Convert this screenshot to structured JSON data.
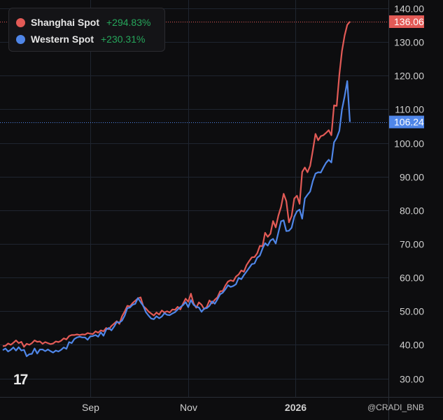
{
  "legend": {
    "items": [
      {
        "name": "Shanghai Spot",
        "change": "+294.83%",
        "color": "#e25a56"
      },
      {
        "name": "Western Spot",
        "change": "+230.31%",
        "color": "#4f86e8"
      }
    ]
  },
  "logo_text": "17",
  "watermark": "@CRADI_BNB",
  "colors": {
    "background": "#0d0d0f",
    "grid": "#1f2530",
    "axis_text": "#cfcfcf",
    "shanghai": "#e25a56",
    "western": "#4f86e8",
    "change_positive": "#26a65b"
  },
  "chart_data": {
    "type": "line",
    "x_axis": {
      "tick_labels": [
        "Sep",
        "Nov",
        "2026"
      ]
    },
    "y_axis": {
      "side": "right",
      "ylim": [
        24.5,
        142.5
      ],
      "ticks": [
        30,
        40,
        50,
        60,
        70,
        80,
        90,
        100,
        110,
        120,
        130,
        140
      ],
      "tick_labels": [
        "30.00",
        "40.00",
        "50.00",
        "60.00",
        "70.00",
        "80.00",
        "90.00",
        "100.00",
        "110.00",
        "120.00",
        "130.00",
        "140.00"
      ]
    },
    "grid": true,
    "legend_position": "top-left",
    "last_value_labels": [
      {
        "series": "Shanghai Spot",
        "value": 136.06,
        "label": "136.06"
      },
      {
        "series": "Western Spot",
        "value": 106.24,
        "label": "106.24"
      }
    ],
    "series": [
      {
        "name": "Shanghai Spot",
        "color": "#e25a56",
        "values": [
          39.6,
          39.7,
          40.4,
          40.0,
          40.6,
          41.3,
          40.5,
          40.9,
          39.4,
          40.3,
          40.0,
          40.5,
          41.3,
          40.9,
          41.0,
          40.3,
          40.8,
          40.5,
          40.2,
          40.4,
          41.0,
          40.8,
          41.2,
          41.9,
          41.6,
          42.6,
          42.9,
          42.9,
          43.1,
          42.9,
          43.1,
          43.0,
          43.5,
          43.3,
          43.2,
          44.0,
          43.6,
          44.3,
          44.0,
          45.0,
          44.6,
          45.6,
          46.3,
          47.0,
          46.2,
          48.5,
          49.9,
          51.6,
          51.4,
          52.4,
          53.1,
          53.8,
          54.1,
          51.5,
          50.8,
          49.9,
          49.3,
          48.7,
          49.6,
          49.0,
          50.2,
          49.6,
          50.0,
          49.6,
          50.5,
          50.4,
          51.3,
          50.5,
          52.2,
          53.7,
          52.8,
          55.2,
          52.3,
          51.0,
          52.6,
          51.9,
          50.6,
          51.3,
          53.2,
          52.3,
          53.4,
          54.1,
          55.9,
          56.0,
          57.6,
          58.8,
          59.2,
          58.9,
          60.3,
          60.9,
          62.1,
          61.7,
          63.7,
          64.9,
          66.0,
          66.1,
          67.2,
          69.4,
          69.3,
          73.3,
          72.1,
          73.0,
          76.8,
          74.9,
          78.4,
          81.0,
          84.9,
          82.7,
          76.4,
          78.3,
          83.5,
          84.3,
          81.9,
          91.4,
          92.7,
          91.3,
          93.2,
          97.8,
          102.7,
          100.8,
          102.0,
          102.3,
          103.0,
          103.8,
          102.3,
          111.2,
          111.0,
          120.3,
          127.3,
          131.9,
          135.1,
          136.1
        ]
      },
      {
        "name": "Western Spot",
        "color": "#4f86e8",
        "values": [
          38.4,
          38.9,
          38.0,
          38.5,
          39.2,
          38.3,
          39.3,
          38.3,
          38.5,
          36.6,
          37.2,
          37.3,
          38.9,
          37.4,
          38.6,
          38.6,
          38.1,
          38.6,
          38.1,
          37.7,
          38.3,
          38.0,
          38.5,
          39.2,
          38.8,
          40.8,
          40.5,
          41.7,
          42.2,
          42.4,
          42.2,
          42.2,
          41.5,
          42.5,
          42.6,
          42.9,
          42.4,
          43.7,
          42.7,
          44.5,
          45.0,
          44.3,
          45.4,
          46.8,
          46.6,
          47.2,
          48.7,
          50.9,
          51.1,
          51.9,
          52.2,
          53.9,
          52.7,
          51.6,
          49.7,
          48.7,
          47.8,
          47.6,
          48.5,
          47.9,
          48.4,
          49.4,
          48.9,
          48.8,
          49.3,
          49.7,
          50.5,
          51.2,
          51.8,
          52.7,
          51.2,
          53.3,
          51.9,
          51.3,
          51.1,
          49.8,
          50.8,
          50.9,
          51.6,
          52.9,
          52.2,
          53.5,
          55.0,
          55.5,
          56.5,
          57.7,
          57.2,
          57.5,
          58.0,
          59.9,
          59.5,
          60.7,
          61.8,
          62.9,
          64.0,
          64.2,
          65.9,
          66.5,
          68.6,
          70.2,
          69.5,
          71.0,
          71.5,
          70.1,
          73.4,
          76.7,
          77.0,
          73.8,
          73.9,
          74.8,
          78.1,
          79.7,
          80.2,
          77.5,
          83.5,
          84.6,
          85.6,
          88.7,
          90.9,
          91.3,
          91.2,
          92.7,
          94.1,
          95.0,
          94.2,
          100.2,
          101.5,
          103.6,
          109.9,
          113.8,
          118.4,
          106.24
        ]
      }
    ]
  }
}
